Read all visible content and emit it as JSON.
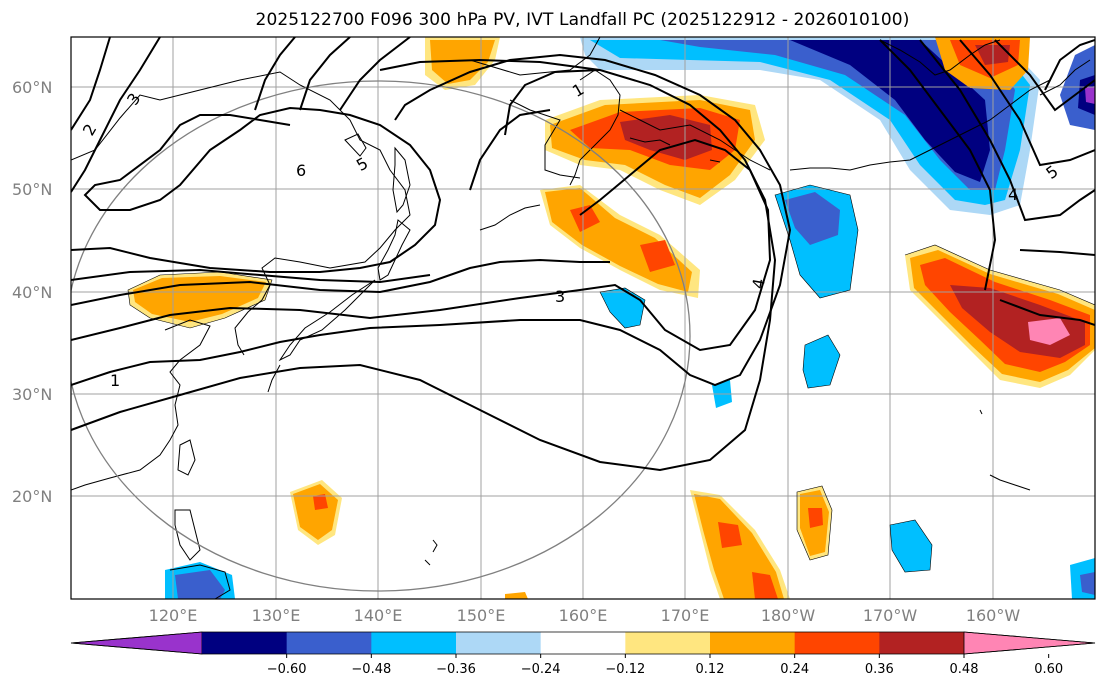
{
  "title": "2025122700 F096 300 hPa PV, IVT Landfall PC (2025122912 - 2026010100)",
  "lat_labels": [
    "60°N",
    "50°N",
    "40°N",
    "30°N",
    "20°N"
  ],
  "lon_labels": [
    "120°E",
    "130°E",
    "140°E",
    "150°E",
    "160°E",
    "170°E",
    "180°W",
    "170°W",
    "160°W"
  ],
  "colorbar": {
    "tick_labels": [
      "−0.60",
      "−0.48",
      "−0.36",
      "−0.24",
      "−0.12",
      "0.12",
      "0.24",
      "0.36",
      "0.48",
      "0.60"
    ],
    "colors": [
      "#9933cc",
      "#000080",
      "#3a5fcd",
      "#00bfff",
      "#add8f6",
      "#ffffff",
      "#ffe680",
      "#ffa500",
      "#ff4500",
      "#b22222",
      "#ff85b4"
    ]
  },
  "contour_labels": [
    "1",
    "2",
    "3",
    "3",
    "4",
    "4",
    "5",
    "5",
    "6",
    "1"
  ]
}
